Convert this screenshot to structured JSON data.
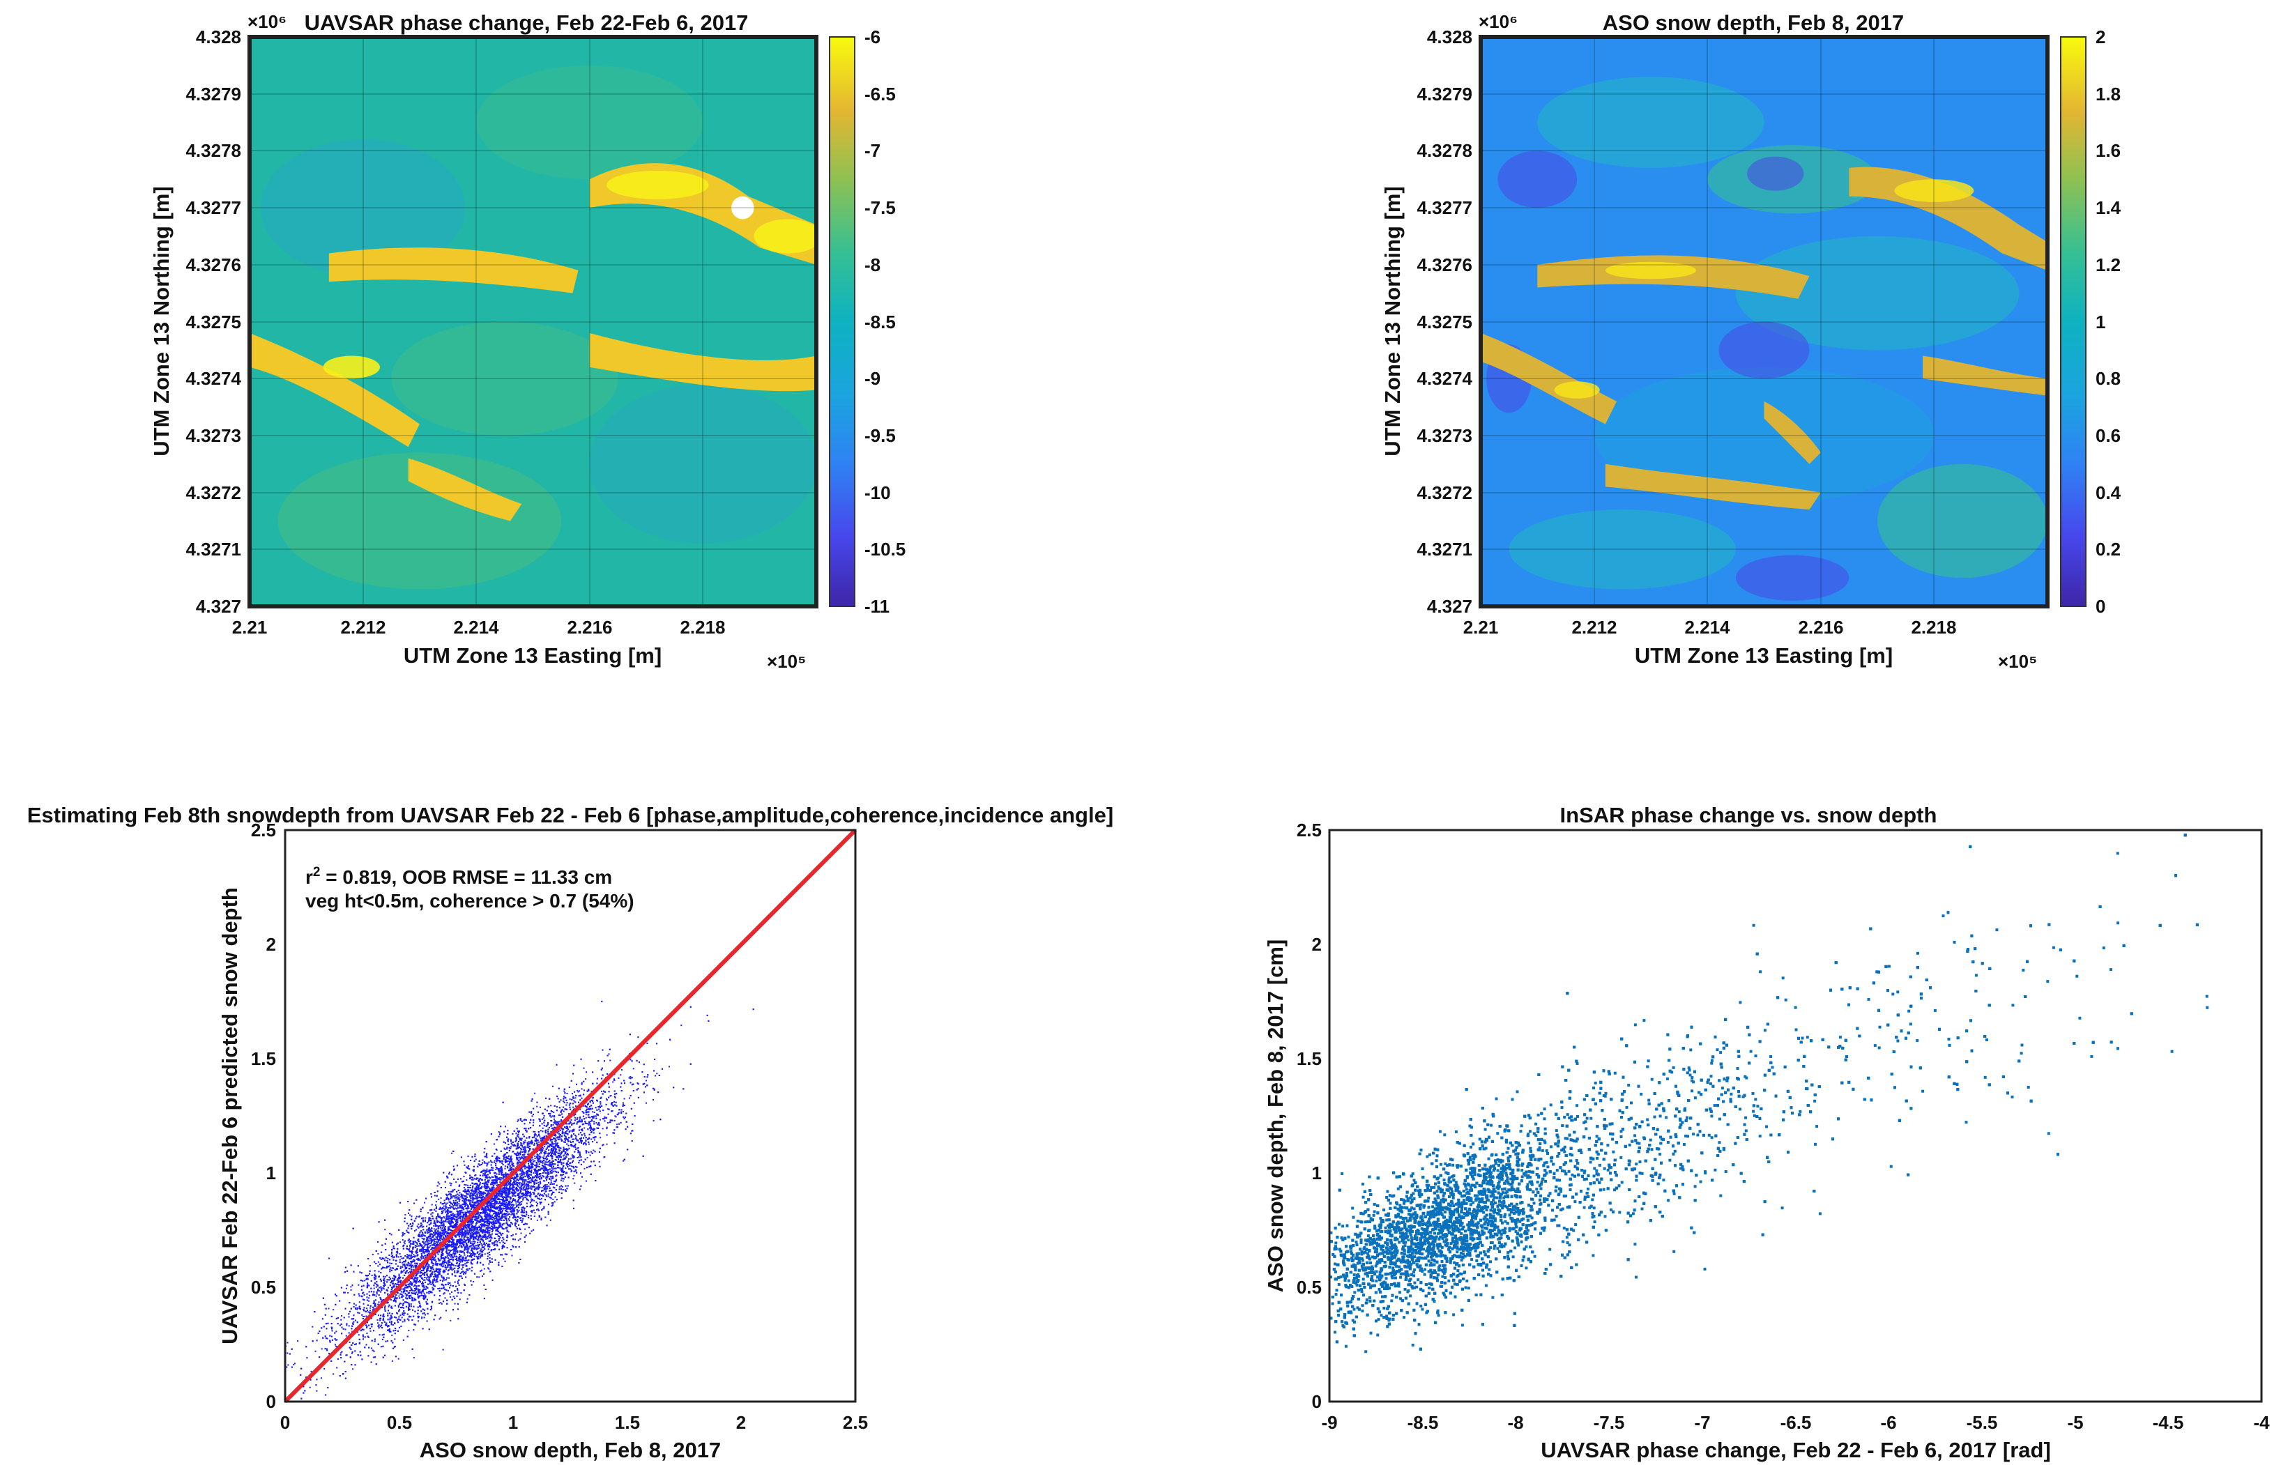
{
  "chart_data": [
    {
      "type": "heatmap",
      "title": "UAVSAR phase change, Feb 22-Feb 6, 2017",
      "xlabel": "UTM Zone 13 Easting [m]",
      "ylabel": "UTM Zone 13 Northing [m]",
      "x_exponent": "×10⁵",
      "y_exponent": "×10⁶",
      "xlim": [
        2.21,
        2.22
      ],
      "ylim": [
        4.327,
        4.328
      ],
      "xticks": [
        "2.21",
        "2.212",
        "2.214",
        "2.216",
        "2.218"
      ],
      "yticks": [
        "4.327",
        "4.3271",
        "4.3272",
        "4.3273",
        "4.3274",
        "4.3275",
        "4.3276",
        "4.3277",
        "4.3278",
        "4.3279",
        "4.328"
      ],
      "colorbar": {
        "ticks": [
          "-6",
          "-6.5",
          "-7",
          "-7.5",
          "-8",
          "-8.5",
          "-9",
          "-9.5",
          "-10",
          "-10.5",
          "-11"
        ],
        "range": [
          -11,
          -6
        ]
      },
      "colormap": "parula",
      "grid": true
    },
    {
      "type": "heatmap",
      "title": "ASO snow depth, Feb 8, 2017",
      "xlabel": "UTM Zone 13 Easting [m]",
      "ylabel": "UTM Zone 13 Northing [m]",
      "x_exponent": "×10⁵",
      "y_exponent": "×10⁶",
      "xlim": [
        2.21,
        2.22
      ],
      "ylim": [
        4.327,
        4.328
      ],
      "xticks": [
        "2.21",
        "2.212",
        "2.214",
        "2.216",
        "2.218"
      ],
      "yticks": [
        "4.327",
        "4.3271",
        "4.3272",
        "4.3273",
        "4.3274",
        "4.3275",
        "4.3276",
        "4.3277",
        "4.3278",
        "4.3279",
        "4.328"
      ],
      "colorbar": {
        "ticks": [
          "2",
          "1.8",
          "1.6",
          "1.4",
          "1.2",
          "1",
          "0.8",
          "0.6",
          "0.4",
          "0.2",
          "0"
        ],
        "range": [
          0,
          2
        ]
      },
      "colormap": "parula",
      "grid": true
    },
    {
      "type": "scatter",
      "title": "Estimating Feb 8th snowdepth from UAVSAR Feb 22 - Feb 6 [phase,amplitude,coherence,incidence angle]",
      "xlabel": "ASO snow depth, Feb 8, 2017",
      "ylabel": "UAVSAR Feb 22-Feb 6 predicted snow depth",
      "xlim": [
        0,
        2.5
      ],
      "ylim": [
        0,
        2.5
      ],
      "xticks": [
        "0",
        "0.5",
        "1",
        "1.5",
        "2",
        "2.5"
      ],
      "yticks": [
        "0",
        "0.5",
        "1",
        "1.5",
        "2",
        "2.5"
      ],
      "annotation": {
        "r2_prefix": "r",
        "r2_sup": "2",
        "r2_rest": " = 0.819, OOB RMSE = 11.33 cm",
        "line2": "veg ht<0.5m, coherence > 0.7 (54%)"
      },
      "reference_line": {
        "x": [
          0,
          2.5
        ],
        "y": [
          0,
          2.5
        ],
        "color": "#e8262b"
      },
      "point_color": "#1a1aff",
      "point_cloud": {
        "center": [
          0.85,
          0.82
        ],
        "sd_x": 0.28,
        "sd_y": 0.26,
        "correlation": 0.9,
        "n_points": 14000
      }
    },
    {
      "type": "scatter",
      "title": "InSAR phase change vs. snow depth",
      "xlabel": "UAVSAR phase change, Feb 22 - Feb 6, 2017 [rad]",
      "ylabel": "ASO snow depth, Feb 8, 2017 [cm]",
      "xlim": [
        -9,
        -4
      ],
      "ylim": [
        0,
        2.5
      ],
      "xticks": [
        "-9",
        "-8.5",
        "-8",
        "-7.5",
        "-7",
        "-6.5",
        "-6",
        "-5.5",
        "-5",
        "-4.5",
        "-4"
      ],
      "yticks": [
        "0",
        "0.5",
        "1",
        "1.5",
        "2",
        "2.5"
      ],
      "point_color": "#0a72bd",
      "trend": {
        "x": [
          -9,
          -8.5,
          -8,
          -7.5,
          -7,
          -6.5,
          -6,
          -5.5,
          -5,
          -4.5
        ],
        "y": [
          0.55,
          0.72,
          0.92,
          1.08,
          1.25,
          1.4,
          1.55,
          1.65,
          1.8,
          2.1
        ]
      },
      "n_points": 9000
    }
  ]
}
